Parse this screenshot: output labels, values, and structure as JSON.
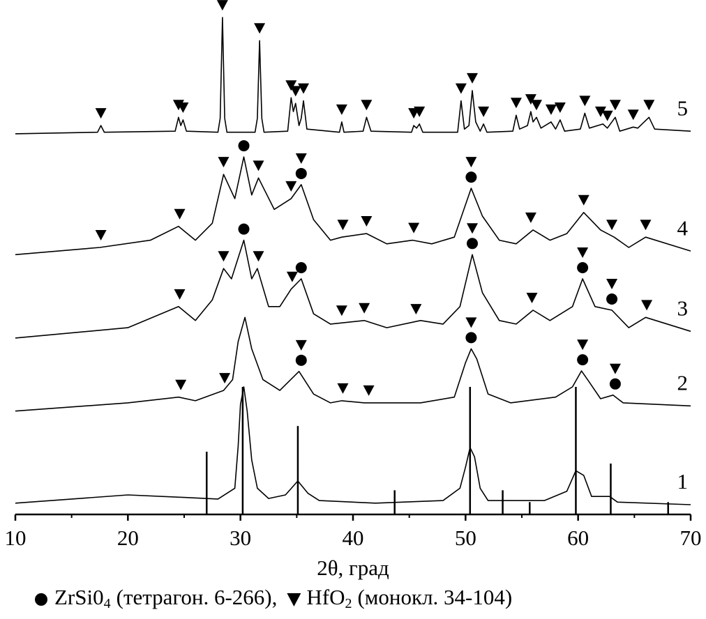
{
  "chart_data": {
    "type": "line",
    "xlabel": "2θ, град",
    "xlim": [
      10,
      70
    ],
    "xticks": [
      10,
      20,
      30,
      40,
      50,
      60,
      70
    ],
    "xminorticks": [
      15,
      25,
      35,
      45,
      55,
      65
    ],
    "ylim": [
      0,
      100
    ],
    "color": "#000000",
    "series": [
      {
        "name": "1",
        "color": "#000000",
        "x": [
          10,
          15,
          20,
          25,
          28,
          29.5,
          29.8,
          30.0,
          30.3,
          30.6,
          31.0,
          31.5,
          32.5,
          34,
          35.1,
          36,
          37,
          42,
          48,
          49.5,
          50.0,
          50.4,
          50.8,
          51.3,
          52,
          57,
          59,
          59.8,
          60.5,
          61.2,
          62.8,
          63.5,
          70
        ],
        "values": [
          2.2,
          3.0,
          3.8,
          3.3,
          3.0,
          5.1,
          13.3,
          21.4,
          24.8,
          20.1,
          10.6,
          5.1,
          3.1,
          3.8,
          6.5,
          4.1,
          2.7,
          2.2,
          2.7,
          5.1,
          9.2,
          13.0,
          11.2,
          5.1,
          2.7,
          2.7,
          4.5,
          8.5,
          7.6,
          3.5,
          3.5,
          2.4,
          1.9
        ],
        "zrsio4": [],
        "hfo2": []
      },
      {
        "name": "2",
        "color": "#000000",
        "x": [
          10,
          20,
          24.5,
          26,
          28.5,
          29.3,
          29.8,
          30.4,
          31,
          32,
          33.5,
          35.2,
          36.5,
          38,
          39,
          41,
          46,
          49,
          50,
          50.5,
          51,
          52,
          54,
          58,
          59.5,
          60.3,
          61,
          62,
          63.1,
          64,
          70
        ],
        "values": [
          20.1,
          21.7,
          22.8,
          22.1,
          24.1,
          26.2,
          33.6,
          38.3,
          32.2,
          26.2,
          24.1,
          27.8,
          23.4,
          21.7,
          22.1,
          21.7,
          21.7,
          22.8,
          29.5,
          32.2,
          30.2,
          23.4,
          21.7,
          22.8,
          24.8,
          27.9,
          25.7,
          22.5,
          23.2,
          21.7,
          21.1
        ],
        "zrsio4": [
          35.4,
          50.5,
          60.4,
          63.3
        ],
        "hfo2": [
          24.7,
          28.6,
          35.4,
          39.1,
          41.4,
          50.5,
          60.4,
          63.3
        ]
      },
      {
        "name": "3",
        "color": "#000000",
        "x": [
          10,
          20,
          24.5,
          26,
          27.5,
          28.5,
          29.2,
          30.3,
          31,
          31.5,
          32.5,
          33.5,
          34.5,
          35.4,
          36.5,
          38,
          41,
          43,
          46,
          48,
          49.5,
          50.6,
          51.5,
          53,
          54.5,
          56,
          57.5,
          59.5,
          60.4,
          61.5,
          63,
          64.5,
          66,
          70
        ],
        "values": [
          34.3,
          36.3,
          40.4,
          37.7,
          41.7,
          47.8,
          45.8,
          53.3,
          45.8,
          47.8,
          40.4,
          40.4,
          43.8,
          45.8,
          39.0,
          37.0,
          37.7,
          36.3,
          37.7,
          37.0,
          40.4,
          50.5,
          43.1,
          37.7,
          37.0,
          39.7,
          37.7,
          40.4,
          45.8,
          40.4,
          39.7,
          36.3,
          38.3,
          35.6
        ],
        "zrsio4": [
          30.3,
          35.4,
          50.6,
          60.4,
          63.0
        ],
        "hfo2": [
          24.6,
          28.5,
          31.6,
          34.6,
          39.0,
          41.0,
          45.6,
          50.6,
          55.9,
          60.4,
          63.0,
          66.1
        ]
      },
      {
        "name": "4",
        "color": "#000000",
        "x": [
          10,
          17.5,
          22,
          24.5,
          26,
          27.5,
          28.5,
          29.5,
          30.3,
          31,
          31.6,
          33,
          34.5,
          35.4,
          36.5,
          38,
          39,
          41.2,
          43,
          45.3,
          47,
          49,
          50.5,
          51.5,
          53,
          54.5,
          56,
          57.5,
          59,
          60.5,
          62,
          63.2,
          64.5,
          66,
          70
        ],
        "values": [
          50.5,
          51.9,
          53.3,
          56.0,
          53.3,
          56.6,
          66.1,
          61.4,
          69.5,
          62.1,
          65.4,
          59.3,
          61.4,
          64.1,
          57.3,
          53.3,
          53.9,
          54.6,
          52.6,
          53.3,
          52.6,
          53.9,
          63.4,
          58.0,
          53.3,
          52.6,
          55.3,
          53.3,
          54.6,
          58.7,
          55.3,
          53.9,
          51.9,
          53.9,
          51.2
        ],
        "zrsio4": [
          30.3,
          35.4,
          50.5
        ],
        "hfo2": [
          17.6,
          24.6,
          28.5,
          31.6,
          34.5,
          35.4,
          39.1,
          41.2,
          45.4,
          50.5,
          55.8,
          60.5,
          63.0,
          66.0
        ]
      },
      {
        "name": "5",
        "color": "#000000",
        "x": [
          10,
          17.3,
          17.6,
          17.9,
          24.2,
          24.5,
          24.7,
          24.9,
          25.2,
          28.0,
          28.2,
          28.4,
          28.6,
          28.8,
          31.3,
          31.5,
          31.7,
          31.9,
          32.1,
          34.2,
          34.5,
          34.7,
          34.9,
          35.2,
          35.4,
          35.6,
          35.9,
          38.8,
          39.0,
          39.2,
          40.9,
          41.2,
          41.6,
          45.2,
          45.4,
          45.65,
          45.9,
          46.2,
          49.3,
          49.6,
          49.9,
          50.3,
          50.6,
          50.9,
          51.3,
          51.6,
          51.9,
          54.2,
          54.5,
          54.8,
          55.5,
          55.8,
          56.0,
          56.3,
          56.7,
          57.6,
          58.0,
          58.4,
          58.8,
          60.2,
          60.6,
          61.0,
          62.2,
          62.6,
          63.3,
          63.7,
          64.9,
          65.3,
          66.3,
          66.8,
          70
        ],
        "values": [
          74.0,
          74.3,
          75.6,
          74.3,
          74.5,
          77.2,
          75.6,
          76.7,
          74.5,
          74.3,
          77.0,
          96.6,
          77.0,
          74.3,
          74.3,
          77.0,
          92.1,
          77.0,
          74.3,
          74.5,
          81.0,
          78.3,
          79.9,
          75.6,
          77.0,
          80.4,
          74.9,
          74.3,
          76.3,
          74.3,
          74.5,
          77.2,
          74.5,
          74.3,
          75.6,
          75.1,
          75.9,
          74.3,
          74.3,
          80.4,
          74.9,
          75.6,
          82.4,
          76.3,
          74.5,
          75.9,
          74.3,
          74.5,
          77.6,
          74.9,
          75.6,
          78.3,
          76.3,
          77.2,
          75.1,
          76.3,
          74.9,
          76.7,
          74.5,
          74.9,
          78.0,
          75.1,
          75.9,
          75.1,
          77.2,
          74.5,
          75.3,
          75.1,
          77.2,
          74.9,
          74.5
        ],
        "zrsio4": [],
        "hfo2": [
          17.6,
          24.5,
          24.9,
          28.4,
          31.7,
          34.5,
          34.9,
          35.6,
          39.0,
          41.2,
          45.4,
          45.9,
          49.6,
          50.6,
          51.6,
          54.5,
          55.8,
          56.3,
          57.6,
          58.4,
          60.6,
          62.0,
          62.6,
          63.3,
          64.9,
          66.3
        ]
      }
    ],
    "reference": {
      "x": [
        27.0,
        30.2,
        35.1,
        43.7,
        50.4,
        53.3,
        55.7,
        59.8,
        62.9,
        68.0
      ],
      "values": [
        12.2,
        24.8,
        17.2,
        4.7,
        24.8,
        4.7,
        2.4,
        24.8,
        9.9,
        2.4
      ]
    },
    "legend": [
      {
        "label": "ZrSi0",
        "sub": "4",
        "note": "(тетрагон. 6-266),"
      },
      {
        "label": "HfO",
        "sub": "2",
        "note": "(монокл. 34-104)"
      }
    ]
  }
}
